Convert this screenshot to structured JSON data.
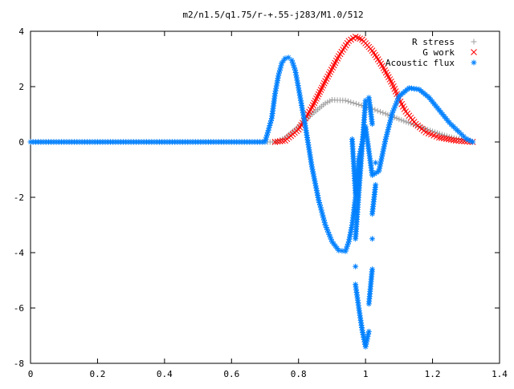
{
  "chart_data": {
    "type": "scatter",
    "title": "m2/n1.5/q1.75/r-+.55-j283/M1.0/512",
    "xlim": [
      0,
      1.4
    ],
    "ylim": [
      -8,
      4
    ],
    "x_ticks": [
      "0",
      "0.2",
      "0.4",
      "0.6",
      "0.8",
      "1",
      "1.2",
      "1.4"
    ],
    "y_ticks": [
      "4",
      "2",
      "0",
      "-2",
      "-4",
      "-6",
      "-8"
    ],
    "x_tick_values": [
      0,
      0.2,
      0.4,
      0.6,
      0.8,
      1.0,
      1.2,
      1.4
    ],
    "y_tick_values": [
      4,
      2,
      0,
      -2,
      -4,
      -6,
      -8
    ],
    "grid": false,
    "legend_position": "top-right",
    "series": [
      {
        "name": "R stress",
        "marker": "+",
        "color": "#a0a0a0",
        "points": [
          [
            0.0,
            0
          ],
          [
            0.1,
            0
          ],
          [
            0.2,
            0
          ],
          [
            0.3,
            0
          ],
          [
            0.4,
            0
          ],
          [
            0.5,
            0
          ],
          [
            0.6,
            0
          ],
          [
            0.7,
            0
          ],
          [
            0.73,
            0.0
          ],
          [
            0.76,
            0.15
          ],
          [
            0.8,
            0.55
          ],
          [
            0.84,
            1.0
          ],
          [
            0.88,
            1.4
          ],
          [
            0.9,
            1.52
          ],
          [
            0.94,
            1.5
          ],
          [
            0.98,
            1.35
          ],
          [
            1.02,
            1.2
          ],
          [
            1.06,
            1.02
          ],
          [
            1.1,
            0.82
          ],
          [
            1.15,
            0.6
          ],
          [
            1.2,
            0.38
          ],
          [
            1.25,
            0.18
          ],
          [
            1.3,
            0.05
          ],
          [
            1.32,
            0.0
          ]
        ]
      },
      {
        "name": "G work",
        "marker": "x",
        "color": "#ff0000",
        "points": [
          [
            0.73,
            0.0
          ],
          [
            0.76,
            0.05
          ],
          [
            0.8,
            0.45
          ],
          [
            0.84,
            1.25
          ],
          [
            0.88,
            2.2
          ],
          [
            0.92,
            3.1
          ],
          [
            0.95,
            3.65
          ],
          [
            0.97,
            3.8
          ],
          [
            0.99,
            3.7
          ],
          [
            1.02,
            3.3
          ],
          [
            1.05,
            2.75
          ],
          [
            1.08,
            2.1
          ],
          [
            1.1,
            1.55
          ],
          [
            1.12,
            1.1
          ],
          [
            1.15,
            0.65
          ],
          [
            1.18,
            0.35
          ],
          [
            1.22,
            0.16
          ],
          [
            1.27,
            0.05
          ],
          [
            1.32,
            0.0
          ]
        ]
      },
      {
        "name": "Acoustic flux",
        "marker": "*",
        "color": "#0080ff",
        "points": [
          [
            0.0,
            0
          ],
          [
            0.1,
            0
          ],
          [
            0.2,
            0
          ],
          [
            0.3,
            0
          ],
          [
            0.4,
            0
          ],
          [
            0.5,
            0
          ],
          [
            0.6,
            0
          ],
          [
            0.7,
            0
          ],
          [
            0.72,
            0.85
          ],
          [
            0.73,
            1.75
          ],
          [
            0.74,
            2.4
          ],
          [
            0.75,
            2.85
          ],
          [
            0.76,
            3.02
          ],
          [
            0.77,
            3.05
          ],
          [
            0.78,
            2.95
          ],
          [
            0.79,
            2.6
          ],
          [
            0.8,
            1.95
          ],
          [
            0.82,
            0.6
          ],
          [
            0.84,
            -0.9
          ],
          [
            0.86,
            -2.1
          ],
          [
            0.88,
            -3.0
          ],
          [
            0.9,
            -3.6
          ],
          [
            0.92,
            -3.92
          ],
          [
            0.94,
            -3.95
          ],
          [
            0.95,
            -3.6
          ],
          [
            0.96,
            -3.0
          ],
          [
            0.97,
            -2.0
          ],
          [
            0.98,
            -0.6
          ],
          [
            1.0,
            0.55
          ],
          [
            1.02,
            -1.2
          ],
          [
            1.04,
            -1.05
          ],
          [
            1.06,
            0.1
          ],
          [
            1.08,
            1.05
          ],
          [
            1.1,
            1.65
          ],
          [
            1.13,
            1.95
          ],
          [
            1.16,
            1.9
          ],
          [
            1.19,
            1.6
          ],
          [
            1.22,
            1.15
          ],
          [
            1.25,
            0.7
          ],
          [
            1.28,
            0.35
          ],
          [
            1.3,
            0.12
          ],
          [
            1.32,
            0.0
          ],
          [
            0.97,
            -4.5
          ],
          [
            0.97,
            -5.15
          ],
          [
            0.98,
            -6.0
          ],
          [
            0.99,
            -6.8
          ],
          [
            1.0,
            -7.4
          ],
          [
            1.01,
            -6.85
          ],
          [
            1.01,
            -5.85
          ],
          [
            1.02,
            -4.6
          ],
          [
            1.02,
            -3.5
          ],
          [
            1.02,
            -2.6
          ],
          [
            1.03,
            -1.55
          ],
          [
            1.03,
            -0.75
          ],
          [
            0.96,
            0.1
          ],
          [
            0.97,
            -1.85
          ],
          [
            0.97,
            -2.5
          ],
          [
            0.97,
            -3.5
          ],
          [
            1.0,
            1.5
          ],
          [
            1.01,
            1.6
          ],
          [
            1.02,
            0.65
          ]
        ]
      }
    ]
  }
}
